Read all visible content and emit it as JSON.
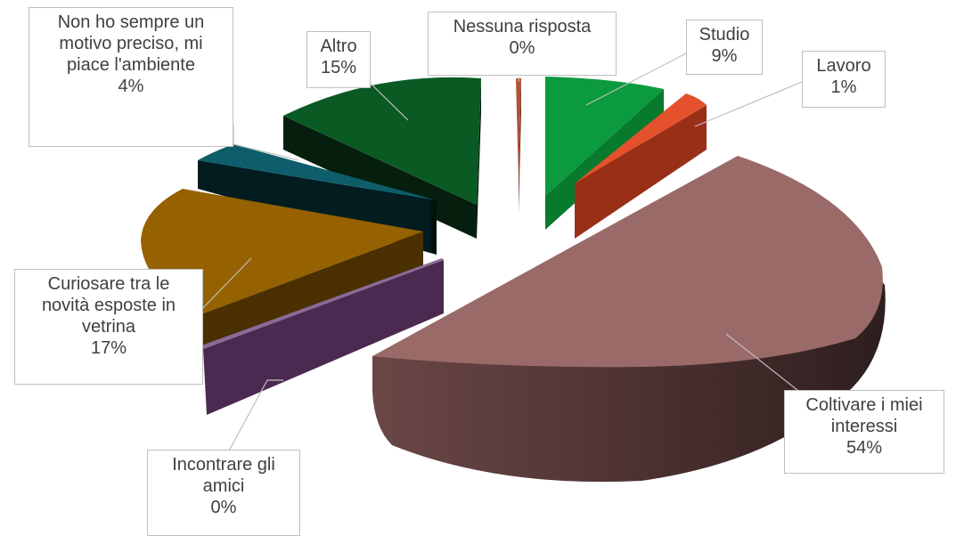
{
  "chart_data": {
    "type": "pie",
    "title": "",
    "exploded_3d": true,
    "slices": [
      {
        "key": "nessuna",
        "label_lines": [
          "Nessuna risposta"
        ],
        "percent_label": "0%",
        "value": 0.3,
        "color": "#b0523a"
      },
      {
        "key": "studio",
        "label_lines": [
          "Studio"
        ],
        "percent_label": "9%",
        "value": 9,
        "color": "#0b9a3e"
      },
      {
        "key": "lavoro",
        "label_lines": [
          "Lavoro"
        ],
        "percent_label": "1%",
        "value": 1,
        "color": "#e4512c"
      },
      {
        "key": "coltivare",
        "label_lines": [
          "Coltivare i miei",
          "interessi"
        ],
        "percent_label": "54%",
        "value": 54,
        "color": "#9a6a68"
      },
      {
        "key": "incontrare",
        "label_lines": [
          "Incontrare gli",
          "amici"
        ],
        "percent_label": "0%",
        "value": 0.3,
        "color": "#5c3a6a"
      },
      {
        "key": "curiosare",
        "label_lines": [
          "Curiosare tra le",
          "novità esposte in",
          "vetrina"
        ],
        "percent_label": "17%",
        "value": 17,
        "color": "#966100"
      },
      {
        "key": "nonho",
        "label_lines": [
          "Non ho sempre un",
          "motivo preciso, mi",
          "piace l'ambiente"
        ],
        "percent_label": "4%",
        "value": 4,
        "color": "#0d5e6a"
      },
      {
        "key": "altro",
        "label_lines": [
          "Altro"
        ],
        "percent_label": "15%",
        "value": 15,
        "color": "#0a5a24"
      }
    ]
  }
}
